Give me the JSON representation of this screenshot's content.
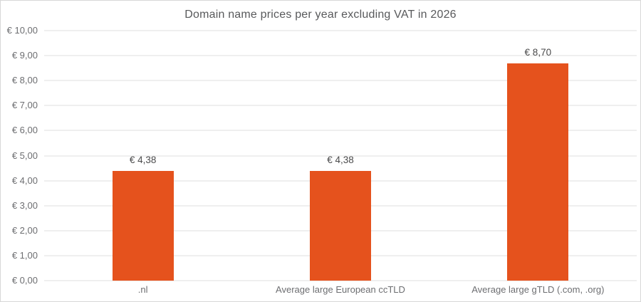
{
  "chart_data": {
    "type": "bar",
    "title": "Domain name prices per year excluding VAT in 2026",
    "categories": [
      ".nl",
      "Average large European ccTLD",
      "Average large gTLD (.com, .org)"
    ],
    "values": [
      4.38,
      4.38,
      8.7
    ],
    "value_labels": [
      "€ 4,38",
      "€ 4,38",
      "€ 8,70"
    ],
    "xlabel": "",
    "ylabel": "",
    "ylim": [
      0,
      10
    ],
    "ytick_step": 1,
    "ytick_labels": [
      "€ 0,00",
      "€ 1,00",
      "€ 2,00",
      "€ 3,00",
      "€ 4,00",
      "€ 5,00",
      "€ 6,00",
      "€ 7,00",
      "€ 8,00",
      "€ 9,00",
      "€ 10,00"
    ],
    "grid": true,
    "legend_position": "none",
    "colors": {
      "bar": "#e5521d",
      "title_text": "#58595b",
      "axis_text": "#6d6e71",
      "value_text": "#4a4a4b",
      "gridline": "#efefef",
      "border": "#d8d8d8",
      "background": "#ffffff"
    }
  }
}
